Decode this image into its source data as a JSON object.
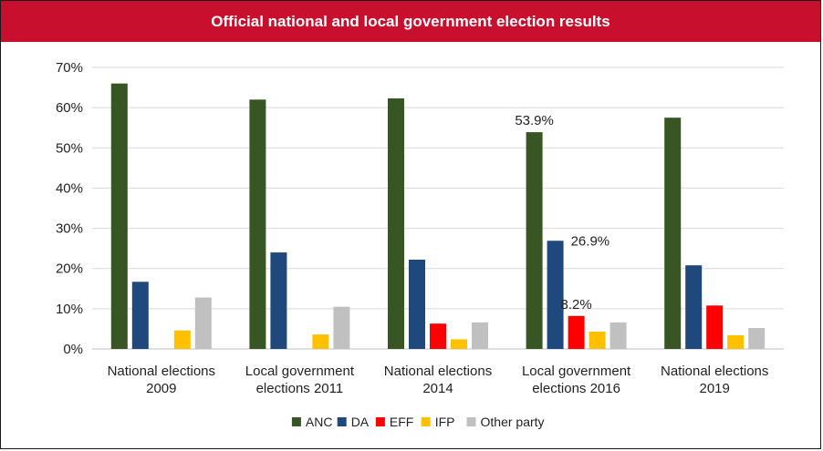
{
  "chart_data": {
    "type": "bar",
    "title": "Official national and local government election results",
    "categories": [
      [
        "National elections",
        "2009"
      ],
      [
        "Local government",
        "elections 2011"
      ],
      [
        "National elections",
        "2014"
      ],
      [
        "Local government",
        "elections 2016"
      ],
      [
        "National elections",
        "2019"
      ]
    ],
    "ylim": [
      0,
      70
    ],
    "y_ticks": [
      0,
      10,
      20,
      30,
      40,
      50,
      60,
      70
    ],
    "y_tick_format": "{v}%",
    "grid": true,
    "legend_position": "bottom",
    "series": [
      {
        "name": "ANC",
        "color": "#375623",
        "values": [
          66.0,
          62.0,
          62.3,
          53.9,
          57.5
        ]
      },
      {
        "name": "DA",
        "color": "#1f497d",
        "values": [
          16.7,
          24.0,
          22.2,
          26.9,
          20.8
        ]
      },
      {
        "name": "EFF",
        "color": "#ff0000",
        "values": [
          null,
          null,
          6.3,
          8.2,
          10.8
        ]
      },
      {
        "name": "IFP",
        "color": "#ffc000",
        "values": [
          4.6,
          3.6,
          2.4,
          4.3,
          3.4
        ]
      },
      {
        "name": "Other party",
        "color": "#c0c0c0",
        "values": [
          12.8,
          10.5,
          6.6,
          6.6,
          5.2
        ]
      }
    ],
    "data_labels": [
      {
        "series": 0,
        "category": 3,
        "text": "53.9%"
      },
      {
        "series": 1,
        "category": 3,
        "text": "26.9%"
      },
      {
        "series": 2,
        "category": 3,
        "text": "8.2%"
      }
    ]
  }
}
